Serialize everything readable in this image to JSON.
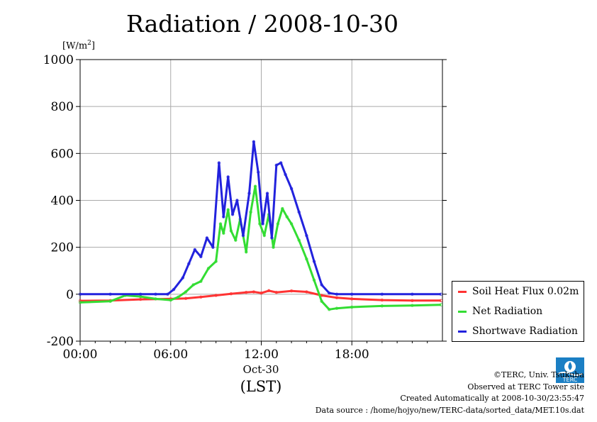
{
  "title": "Radiation / 2008-10-30",
  "unit_label_base": "[W/m",
  "unit_label_sup": "2",
  "unit_label_end": "]",
  "x_sublabel": "Oct-30",
  "x_timezone": "(LST)",
  "legend": [
    {
      "name": "Soil Heat Flux 0.02m",
      "color": "#ff3333"
    },
    {
      "name": "Net Radiation",
      "color": "#33dd33"
    },
    {
      "name": "Shortwave Radiation",
      "color": "#2222dd"
    }
  ],
  "credits": [
    "©TERC, Univ. Tsukuba",
    "Observed at TERC Tower site",
    "Created Automatically at 2008-10-30/23:55:47",
    "Data source : /home/hojyo/new/TERC-data/sorted_data/MET.10s.dat"
  ],
  "logo_text": "TERC",
  "chart_data": {
    "type": "line",
    "title": "Radiation / 2008-10-30",
    "ylabel": "[W/m2]",
    "xlabel": "(LST)",
    "xlim": [
      0,
      24
    ],
    "ylim": [
      -200,
      1000
    ],
    "yticks": [
      -200,
      0,
      200,
      400,
      600,
      800,
      1000
    ],
    "ytick_labels": [
      "-200",
      "0",
      "200",
      "400",
      "600",
      "800",
      "1000"
    ],
    "xticks": [
      0,
      6,
      12,
      18
    ],
    "xtick_labels": [
      "00:00",
      "06:00",
      "12:00",
      "18:00"
    ],
    "grid": true,
    "legend_position": "bottom-right outside",
    "series": [
      {
        "name": "Soil Heat Flux 0.02m",
        "color": "#ff3333",
        "x": [
          0,
          2,
          4,
          6,
          7,
          8,
          9,
          10,
          11,
          11.5,
          12,
          12.5,
          13,
          14,
          15,
          16,
          17,
          18,
          20,
          22,
          23.9
        ],
        "y": [
          -28,
          -27,
          -22,
          -20,
          -18,
          -12,
          -5,
          2,
          8,
          10,
          5,
          15,
          8,
          14,
          10,
          -5,
          -15,
          -20,
          -25,
          -27,
          -27
        ]
      },
      {
        "name": "Net Radiation",
        "color": "#33dd33",
        "x": [
          0,
          2,
          3,
          4,
          5,
          6,
          6.5,
          7,
          7.5,
          8,
          8.5,
          9,
          9.3,
          9.5,
          9.8,
          10,
          10.3,
          10.6,
          11,
          11.3,
          11.6,
          11.9,
          12.2,
          12.5,
          12.8,
          13.1,
          13.4,
          13.7,
          14,
          14.5,
          15,
          15.5,
          16,
          16.5,
          17,
          18,
          20,
          22,
          23.9
        ],
        "y": [
          -35,
          -30,
          -5,
          -10,
          -20,
          -25,
          -12,
          10,
          40,
          55,
          110,
          140,
          300,
          260,
          360,
          270,
          230,
          320,
          180,
          350,
          460,
          300,
          250,
          340,
          200,
          300,
          365,
          330,
          300,
          230,
          150,
          60,
          -30,
          -65,
          -60,
          -55,
          -50,
          -48,
          -45
        ]
      },
      {
        "name": "Shortwave Radiation",
        "color": "#2222dd",
        "x": [
          0,
          2,
          4,
          5,
          5.8,
          6.2,
          6.8,
          7.2,
          7.6,
          8,
          8.4,
          8.8,
          9.2,
          9.5,
          9.8,
          10.1,
          10.4,
          10.8,
          11.2,
          11.5,
          11.8,
          12.1,
          12.4,
          12.7,
          13,
          13.3,
          13.6,
          14,
          14.5,
          15,
          15.5,
          16,
          16.5,
          17,
          18,
          20,
          22,
          23.9
        ],
        "y": [
          0,
          0,
          0,
          0,
          0,
          20,
          70,
          130,
          190,
          160,
          240,
          200,
          560,
          330,
          500,
          340,
          400,
          250,
          430,
          650,
          520,
          300,
          430,
          240,
          550,
          560,
          510,
          450,
          350,
          250,
          140,
          40,
          5,
          0,
          0,
          0,
          0,
          0
        ]
      }
    ]
  }
}
